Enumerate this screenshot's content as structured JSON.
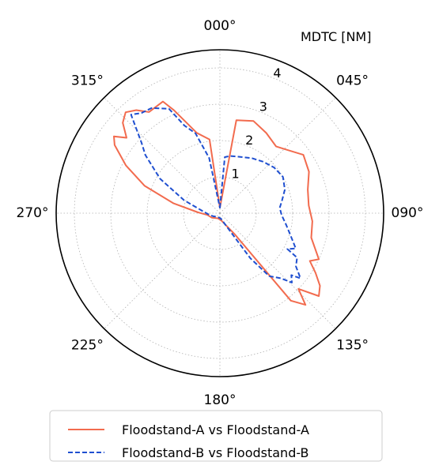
{
  "chart_data": {
    "type": "line",
    "subtype": "polar",
    "theta_zero": "north",
    "theta_direction": "clockwise",
    "radial_unit_label": "MDTC [NM]",
    "rlim": [
      0,
      4.5
    ],
    "radial_ticks": [
      "1",
      "2",
      "3",
      "4"
    ],
    "angular_ticks": [
      "000°",
      "045°",
      "090°",
      "135°",
      "180°",
      "225°",
      "270°",
      "315°"
    ],
    "grid": true,
    "legend_position": "bottom",
    "series": [
      {
        "name": "Floodstand-A vs Floodstand-A",
        "color": "#f26b4e",
        "style": "solid",
        "points": [
          [
            0,
            0.15
          ],
          [
            10,
            2.6
          ],
          [
            20,
            2.7
          ],
          [
            30,
            2.55
          ],
          [
            40,
            2.4
          ],
          [
            45,
            2.5
          ],
          [
            55,
            2.8
          ],
          [
            65,
            2.7
          ],
          [
            75,
            2.5
          ],
          [
            85,
            2.45
          ],
          [
            95,
            2.55
          ],
          [
            105,
            2.6
          ],
          [
            115,
            3.0
          ],
          [
            118,
            2.8
          ],
          [
            122,
            3.1
          ],
          [
            126,
            3.4
          ],
          [
            130,
            3.55
          ],
          [
            134,
            3.0
          ],
          [
            137,
            3.45
          ],
          [
            141,
            3.1
          ],
          [
            145,
            0.7
          ],
          [
            170,
            0.2
          ],
          [
            200,
            0.15
          ],
          [
            240,
            0.25
          ],
          [
            262,
            0.35
          ],
          [
            272,
            0.6
          ],
          [
            282,
            1.3
          ],
          [
            290,
            2.2
          ],
          [
            297,
            2.9
          ],
          [
            303,
            3.45
          ],
          [
            306,
            3.6
          ],
          [
            309,
            3.3
          ],
          [
            313,
            3.65
          ],
          [
            317,
            3.8
          ],
          [
            321,
            3.65
          ],
          [
            325,
            3.4
          ],
          [
            333,
            3.45
          ],
          [
            336,
            3.1
          ],
          [
            344,
            2.3
          ],
          [
            352,
            2.05
          ],
          [
            360,
            0.15
          ]
        ]
      },
      {
        "name": "Floodstand-B vs Floodstand-B",
        "color": "#1f4fd0",
        "style": "dashed",
        "points": [
          [
            0,
            0.15
          ],
          [
            5,
            1.55
          ],
          [
            10,
            1.6
          ],
          [
            20,
            1.65
          ],
          [
            30,
            1.75
          ],
          [
            40,
            1.85
          ],
          [
            50,
            1.95
          ],
          [
            60,
            2.0
          ],
          [
            70,
            1.9
          ],
          [
            78,
            1.75
          ],
          [
            85,
            1.65
          ],
          [
            92,
            1.7
          ],
          [
            100,
            1.85
          ],
          [
            108,
            2.05
          ],
          [
            115,
            2.3
          ],
          [
            118,
            2.1
          ],
          [
            120,
            2.45
          ],
          [
            125,
            2.55
          ],
          [
            129,
            2.85
          ],
          [
            131,
            2.6
          ],
          [
            134,
            2.75
          ],
          [
            137,
            2.45
          ],
          [
            142,
            2.2
          ],
          [
            146,
            1.5
          ],
          [
            150,
            0.6
          ],
          [
            170,
            0.15
          ],
          [
            210,
            0.12
          ],
          [
            245,
            0.2
          ],
          [
            262,
            0.3
          ],
          [
            278,
            0.5
          ],
          [
            290,
            1.05
          ],
          [
            300,
            1.9
          ],
          [
            308,
            2.6
          ],
          [
            312,
            2.9
          ],
          [
            318,
            3.65
          ],
          [
            322,
            3.5
          ],
          [
            327,
            3.45
          ],
          [
            334,
            3.2
          ],
          [
            338,
            2.6
          ],
          [
            343,
            2.3
          ],
          [
            349,
            1.55
          ],
          [
            360,
            0.15
          ]
        ]
      }
    ]
  }
}
